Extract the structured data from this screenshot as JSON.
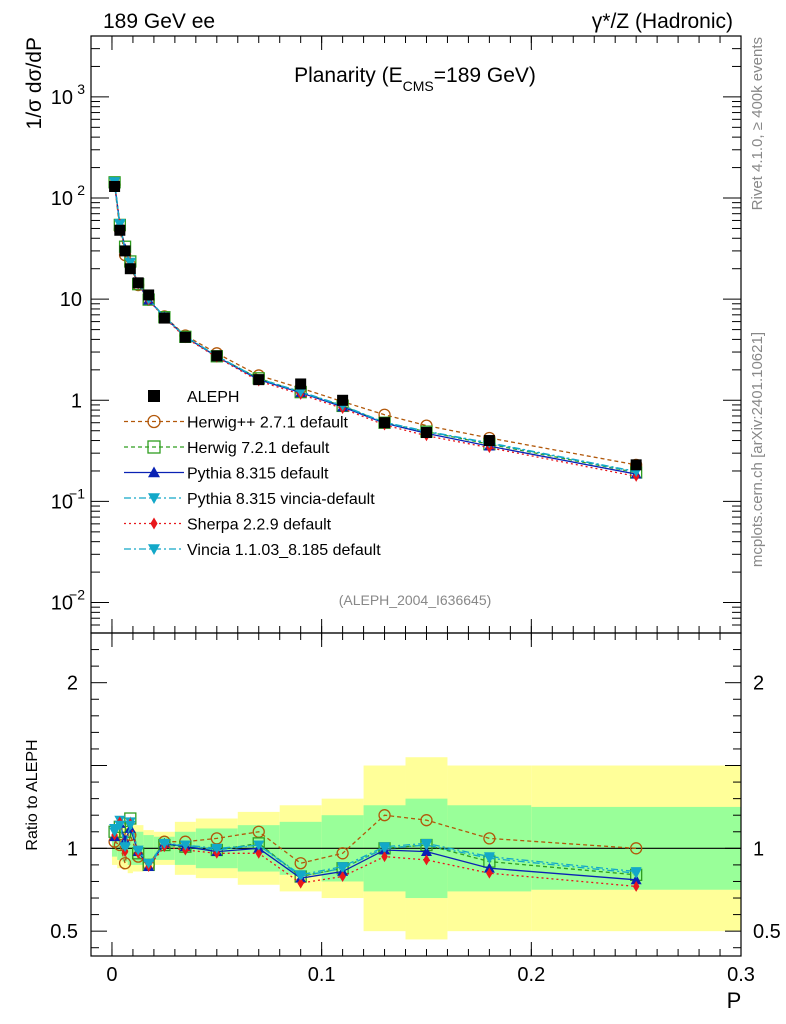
{
  "header": {
    "left": "189 GeV ee",
    "right": "γ*/Z (Hadronic)"
  },
  "side_text": {
    "rivet": "Rivet 4.1.0, ≥ 400k events",
    "mcplots": "mcplots.cern.ch [arXiv:2401.10621]"
  },
  "chart_data": {
    "type": "line",
    "title": "Planarity (E",
    "title_sub": "CMS",
    "title_rest": "=189 GeV)",
    "analysis_id": "(ALEPH_2004_I636645)",
    "ylabel": "1/σ  dσ/dP",
    "ratio_ylabel": "Ratio to ALEPH",
    "xlabel": "P",
    "xlim": [
      -0.01,
      0.3
    ],
    "ylim": [
      0.005,
      4000
    ],
    "ratio_ylim": [
      0.35,
      2.3
    ],
    "x_ticks": [
      {
        "v": 0,
        "label": "0"
      },
      {
        "v": 0.1,
        "label": "0.1"
      },
      {
        "v": 0.2,
        "label": "0.2"
      },
      {
        "v": 0.3,
        "label": "0.3"
      }
    ],
    "y_ticks": [
      {
        "v": 0.01,
        "label": "10",
        "sup": "−2"
      },
      {
        "v": 0.1,
        "label": "10",
        "sup": "−1"
      },
      {
        "v": 1,
        "label": "1",
        "sup": ""
      },
      {
        "v": 10,
        "label": "10",
        "sup": ""
      },
      {
        "v": 100,
        "label": "10",
        "sup": "2"
      },
      {
        "v": 1000,
        "label": "10",
        "sup": "3"
      }
    ],
    "ratio_ticks": [
      {
        "v": 0.5,
        "label": "0.5"
      },
      {
        "v": 1,
        "label": "1"
      },
      {
        "v": 2,
        "label": "2"
      }
    ],
    "bins": [
      0,
      0.0025,
      0.005,
      0.0075,
      0.01,
      0.015,
      0.02,
      0.03,
      0.04,
      0.06,
      0.08,
      0.1,
      0.12,
      0.14,
      0.16,
      0.2,
      0.3
    ],
    "x": [
      0.00125,
      0.00375,
      0.00625,
      0.00875,
      0.0125,
      0.0175,
      0.025,
      0.035,
      0.05,
      0.07,
      0.09,
      0.11,
      0.13,
      0.15,
      0.18,
      0.25
    ],
    "band_inner": [
      0.05,
      0.07,
      0.08,
      0.1,
      0.1,
      0.08,
      0.07,
      0.1,
      0.12,
      0.14,
      0.16,
      0.2,
      0.26,
      0.3,
      0.26,
      0.25
    ],
    "band_outer": [
      0.1,
      0.12,
      0.13,
      0.15,
      0.14,
      0.11,
      0.1,
      0.16,
      0.18,
      0.22,
      0.26,
      0.3,
      0.5,
      0.55,
      0.5,
      0.5
    ],
    "data": {
      "name": "ALEPH",
      "color": "#000000",
      "values": [
        130,
        48,
        30,
        20,
        14.5,
        11.0,
        6.5,
        4.2,
        2.75,
        1.6,
        1.45,
        1.0,
        0.6,
        0.48,
        0.4,
        0.23
      ]
    },
    "series": [
      {
        "name": "Herwig++ 2.7.1 default",
        "color": "#b2580a",
        "dash": "4,3",
        "marker": "circle-open",
        "ratio": [
          1.04,
          1.02,
          0.91,
          1.08,
          0.95,
          0.9,
          1.04,
          1.04,
          1.06,
          1.1,
          0.91,
          0.97,
          1.2,
          1.17,
          1.06,
          1.0
        ]
      },
      {
        "name": "Herwig 7.2.1 default",
        "color": "#2f9e1f",
        "dash": "4,3",
        "marker": "square-open",
        "ratio": [
          1.1,
          1.13,
          1.1,
          1.18,
          0.97,
          0.9,
          1.02,
          1.01,
          0.99,
          1.03,
          0.83,
          0.88,
          1.0,
          1.02,
          0.92,
          0.84
        ]
      },
      {
        "name": "Pythia 8.315 default",
        "color": "#0a22b4",
        "dash": "",
        "marker": "triangle-up",
        "ratio": [
          1.07,
          1.15,
          1.05,
          1.12,
          0.98,
          0.89,
          1.03,
          1.01,
          0.98,
          1.0,
          0.82,
          0.86,
          0.99,
          0.98,
          0.88,
          0.81
        ]
      },
      {
        "name": "Pythia 8.315 vincia-default",
        "color": "#13a8c8",
        "dash": "7,3,2,3",
        "marker": "triangle-down",
        "ratio": [
          1.12,
          1.17,
          1.0,
          1.16,
          0.98,
          0.9,
          1.02,
          1.02,
          0.99,
          1.02,
          0.83,
          0.88,
          1.0,
          1.02,
          0.94,
          0.85
        ]
      },
      {
        "name": "Sherpa 2.2.9 default",
        "color": "#e8171b",
        "dash": "2,3",
        "marker": "diamond",
        "ratio": [
          1.08,
          1.16,
          0.98,
          1.15,
          0.97,
          0.89,
          1.01,
          0.99,
          0.97,
          0.97,
          0.79,
          0.83,
          0.95,
          0.93,
          0.85,
          0.77
        ]
      },
      {
        "name": "Vincia 1.1.03_8.185 default",
        "color": "#13a8c8",
        "dash": "7,3,2,3",
        "marker": "triangle-down",
        "ratio": [
          1.1,
          1.14,
          1.01,
          1.14,
          0.99,
          0.91,
          1.03,
          1.02,
          1.0,
          1.02,
          0.84,
          0.89,
          1.01,
          1.03,
          0.95,
          0.86
        ]
      }
    ]
  }
}
